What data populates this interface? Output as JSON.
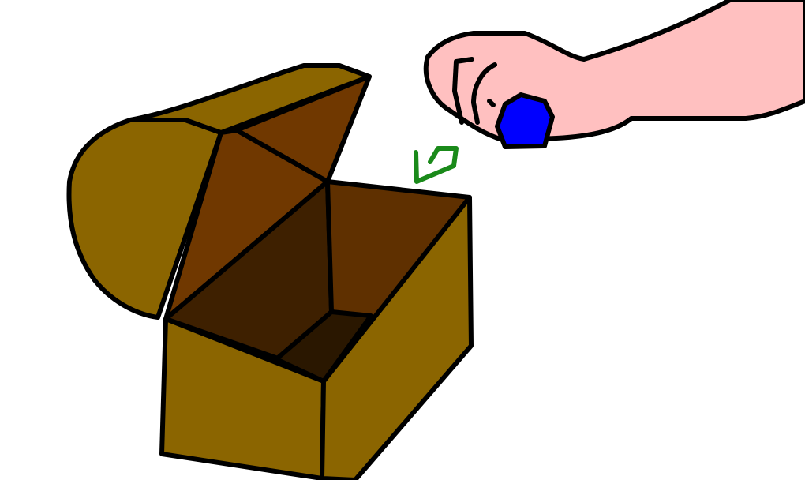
{
  "scene": {
    "subject": "open-treasure-chest-with-hand-dropping-gem",
    "colors": {
      "background": "#ffffff",
      "outline": "#000000",
      "chest_wood": "#8B6500",
      "lid_inner": "#703800",
      "inner_right_wall": "#5F3000",
      "inner_back_wall": "#3E2000",
      "inner_floor": "#2A1700",
      "hand_skin": "#FFC0C0",
      "gem": "#0000FF",
      "arrow": "#1A8A1A"
    },
    "icons": {
      "arrow": "arrow-down-left-icon"
    }
  }
}
